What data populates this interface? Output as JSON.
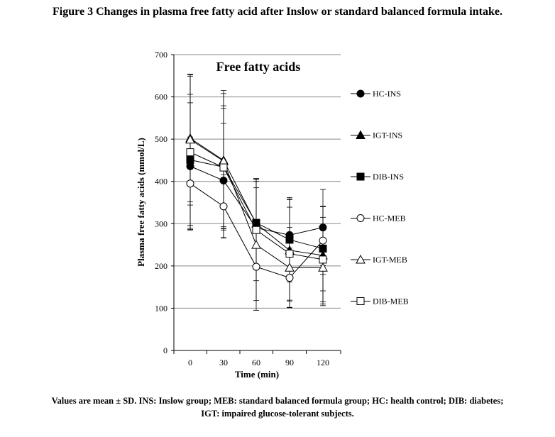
{
  "figure": {
    "title": "Figure 3 Changes in plasma free fatty acid after Inslow or standard balanced formula intake.",
    "caption_line1": "Values are mean ± SD. INS: Inslow group; MEB: standard balanced formula group; HC: health control; DIB: diabetes;",
    "caption_line2": "IGT: impaired glucose-tolerant subjects."
  },
  "chart_data": {
    "type": "line",
    "title": "Free fatty acids",
    "xlabel": "Time (min)",
    "ylabel": "Plasma free fatty acids (mmol/L)",
    "categories": [
      "0",
      "30",
      "60",
      "90",
      "120"
    ],
    "ylim": [
      0,
      700
    ],
    "yticks": [
      0,
      100,
      200,
      300,
      400,
      500,
      600,
      700
    ],
    "grid": true,
    "legend_position": "right",
    "series": [
      {
        "name": "HC-INS",
        "marker": "circle",
        "filled": true,
        "values": [
          436,
          402,
          290,
          273,
          291
        ],
        "sd": [
          150,
          135,
          95,
          85,
          90
        ]
      },
      {
        "name": "IGT-INS",
        "marker": "triangle",
        "filled": true,
        "values": [
          502,
          450,
          300,
          237,
          225
        ],
        "sd": [
          150,
          165,
          100,
          120,
          115
        ]
      },
      {
        "name": "DIB-INS",
        "marker": "square",
        "filled": true,
        "values": [
          451,
          434,
          302,
          262,
          241
        ],
        "sd": [
          155,
          145,
          105,
          100,
          100
        ]
      },
      {
        "name": "HC-MEB",
        "marker": "circle",
        "filled": false,
        "values": [
          395,
          341,
          198,
          172,
          260
        ],
        "sd": [
          110,
          75,
          80,
          70,
          80
        ]
      },
      {
        "name": "IGT-MEB",
        "marker": "triangle",
        "filled": false,
        "values": [
          499,
          448,
          250,
          196,
          196
        ],
        "sd": [
          155,
          160,
          155,
          95,
          90
        ]
      },
      {
        "name": "DIB-MEB",
        "marker": "square",
        "filled": false,
        "values": [
          469,
          433,
          285,
          229,
          215
        ],
        "sd": [
          180,
          140,
          120,
          110,
          100
        ]
      }
    ]
  }
}
